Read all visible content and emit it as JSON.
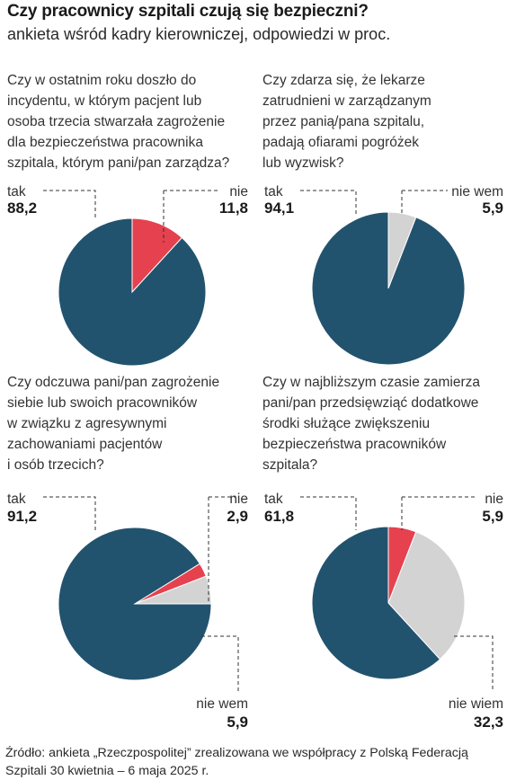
{
  "header": {
    "title": "Czy pracownicy szpitali czują się bezpieczni?",
    "subtitle": "ankieta wśród kadry kierowniczej, odpowiedzi w proc."
  },
  "colors": {
    "tak": "#22536e",
    "nie": "#e5414e",
    "nie_wiem": "#d3d3d3"
  },
  "chart_data": [
    {
      "type": "pie",
      "title": "Czy w ostatnim roku doszło do incydentu, w którym pacjent lub osoba trzecia stwarzała zagrożenie dla bezpieczeństwa pracownika szpitala, którym pani/pan zarządza?",
      "question_lines": [
        "Czy w ostatnim roku doszło do",
        "incydentu, w którym pacjent lub",
        "osoba trzecia stwarzała zagrożenie",
        "dla bezpieczeństwa pracownika",
        "szpitala, którym pani/pan zarządza?"
      ],
      "slices": [
        {
          "label": "nie",
          "value": 11.8,
          "display": "11,8",
          "color": "#e5414e"
        },
        {
          "label": "tak",
          "value": 88.2,
          "display": "88,2",
          "color": "#22536e"
        }
      ]
    },
    {
      "type": "pie",
      "title": "Czy zdarza się, że lekarze zatrudnieni w zarządzanym przez panią/pana szpitalu, padają ofiarami pogróżek lub wyzwisk?",
      "question_lines": [
        "Czy zdarza się, że lekarze",
        "zatrudnieni w zarządzanym",
        "przez panią/pana szpitalu,",
        "padają ofiarami pogróżek",
        "lub wyzwisk?"
      ],
      "slices": [
        {
          "label": "nie wem",
          "value": 5.9,
          "display": "5,9",
          "color": "#d3d3d3"
        },
        {
          "label": "tak",
          "value": 94.1,
          "display": "94,1",
          "color": "#22536e"
        }
      ]
    },
    {
      "type": "pie",
      "title": "Czy odczuwa pani/pan zagrożenie siebie lub swoich pracowników w związku z agresywnymi zachowaniami pacjentów i osób trzecich?",
      "question_lines": [
        "Czy odczuwa pani/pan zagrożenie",
        "siebie lub swoich pracowników",
        "w związku z agresywnymi",
        "zachowaniami pacjentów",
        "i osób trzecich?"
      ],
      "slices": [
        {
          "label": "tak",
          "value": 91.2,
          "display": "91,2",
          "color": "#22536e"
        },
        {
          "label": "nie",
          "value": 2.9,
          "display": "2,9",
          "color": "#e5414e"
        },
        {
          "label": "nie wem",
          "value": 5.9,
          "display": "5,9",
          "color": "#d3d3d3"
        }
      ]
    },
    {
      "type": "pie",
      "title": "Czy w najbliższym czasie zamierza pani/pan przedsięwziąć dodatkowe środki służące zwiększeniu bezpieczeństwa pracowników szpitala?",
      "question_lines": [
        "Czy w najbliższym czasie zamierza",
        "pani/pan przedsięwziąć dodatkowe",
        "środki służące zwiększeniu",
        "bezpieczeństwa pracowników",
        "szpitala?"
      ],
      "slices": [
        {
          "label": "nie",
          "value": 5.9,
          "display": "5,9",
          "color": "#e5414e"
        },
        {
          "label": "nie wiem",
          "value": 32.3,
          "display": "32,3",
          "color": "#d3d3d3"
        },
        {
          "label": "tak",
          "value": 61.8,
          "display": "61,8",
          "color": "#22536e"
        }
      ]
    }
  ],
  "source": {
    "line1": "Źródło: ankieta „Rzeczpospolitej” zrealizowana we współpracy z Polską Federacją",
    "line2": "Szpitali 30 kwietnia – 6 maja 2025 r."
  }
}
